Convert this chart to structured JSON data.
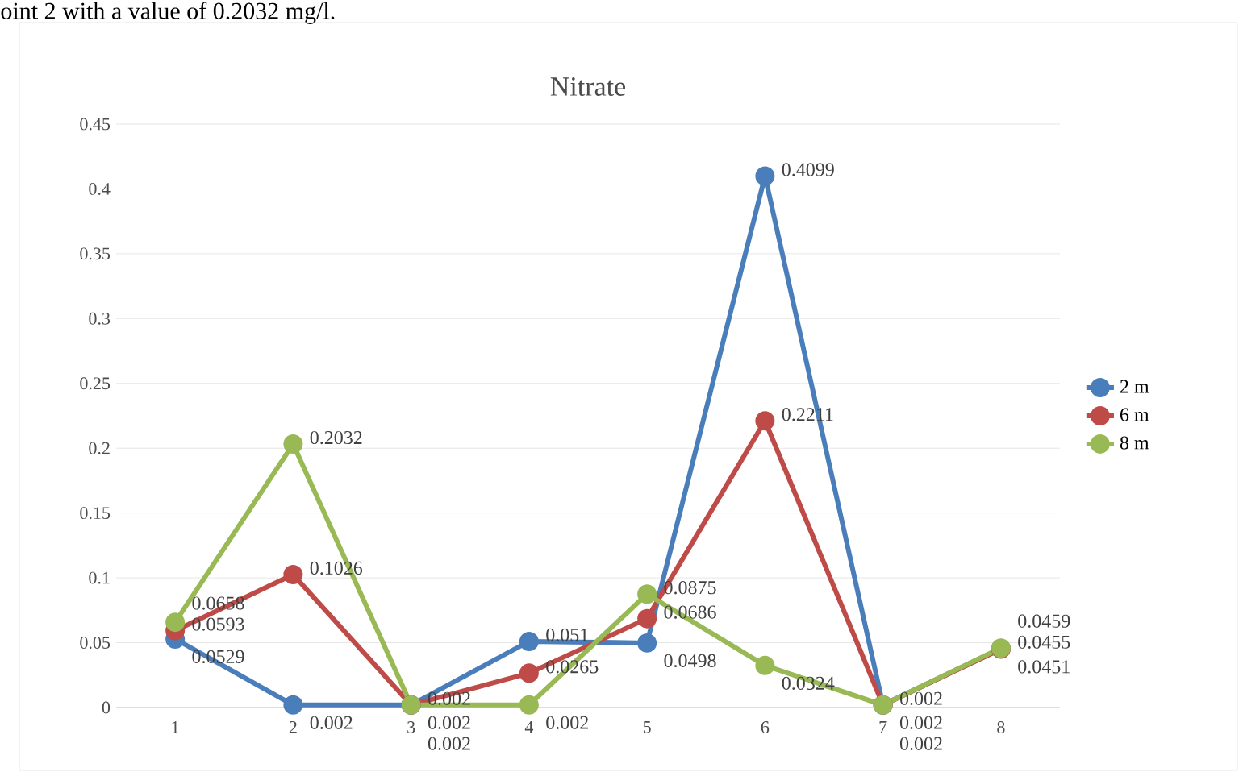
{
  "chart_data": {
    "type": "line",
    "title": "Nitrate",
    "annotations": [
      "oint 2 with a value of 0.2032 mg/l."
    ],
    "categories": [
      "1",
      "2",
      "3",
      "4",
      "5",
      "6",
      "7",
      "8"
    ],
    "series": [
      {
        "name": "2 m",
        "color": "#4a7ebb",
        "values": [
          0.0529,
          0.002,
          0.002,
          0.051,
          0.0498,
          0.4099,
          0.002,
          0.0455
        ]
      },
      {
        "name": "6 m",
        "color": "#be4b48",
        "values": [
          0.0593,
          0.1026,
          0.002,
          0.0265,
          0.0686,
          0.2211,
          0.002,
          0.0451
        ]
      },
      {
        "name": "8 m",
        "color": "#98b954",
        "values": [
          0.0658,
          0.2032,
          0.002,
          0.002,
          0.0875,
          0.0324,
          0.002,
          0.0459
        ]
      }
    ],
    "ylim": [
      0,
      0.45
    ],
    "yticks": [
      0,
      0.05,
      0.1,
      0.15,
      0.2,
      0.25,
      0.3,
      0.35,
      0.4,
      0.45
    ],
    "grid": "y",
    "legend": "right",
    "marker": "circle",
    "line_style": "solid",
    "data_labels": true
  }
}
